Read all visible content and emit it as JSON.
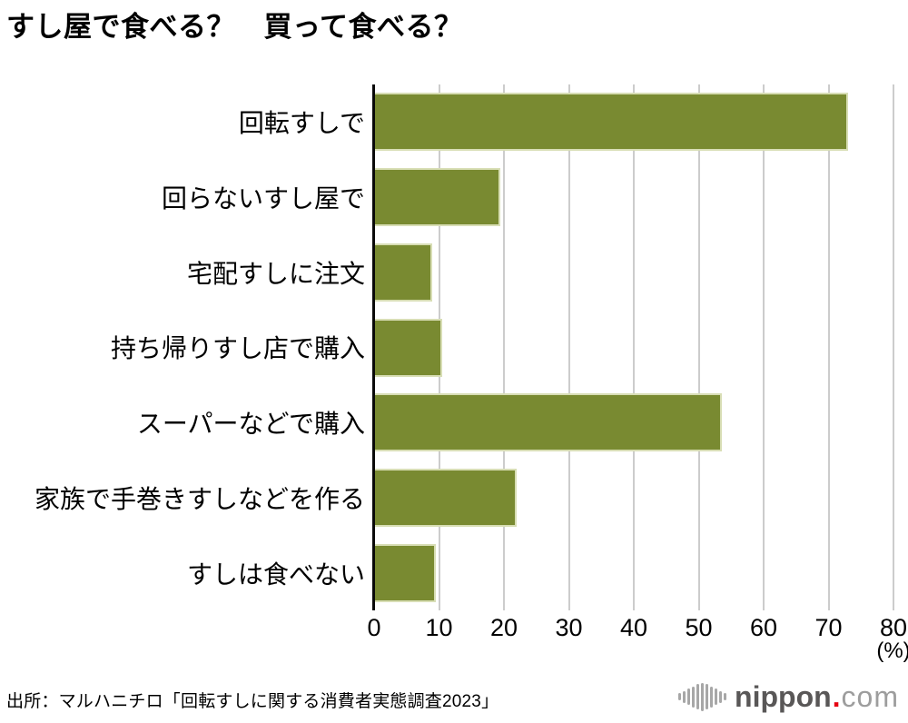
{
  "title": "すし屋で食べる？　買って食べる？",
  "source": "出所：マルハニチロ「回転すしに関する消費者実態調査2023」",
  "logo": {
    "name": "nippon",
    "dot": ".",
    "tld": "com"
  },
  "colors": {
    "bar": "#798a31",
    "bar_border": "#d8deb5",
    "gridline": "#cccccc",
    "axis": "#0a0a0a",
    "text": "#000000",
    "logo_dark": "#595757",
    "logo_light": "#9d9d9d",
    "logo_dot": "#e60012",
    "logo_mark": "#a7a7a7"
  },
  "chart_data": {
    "type": "bar",
    "orientation": "horizontal",
    "title": "すし屋で食べる？　買って食べる？",
    "categories": [
      "回転すしで",
      "回らないすし屋で",
      "宅配すしに注文",
      "持ち帰りすし店で購入",
      "スーパーなどで購入",
      "家族で手巻きすしなどを作る",
      "すしは食べない"
    ],
    "values": [
      73,
      19.5,
      9,
      10.5,
      53.5,
      22,
      9.5
    ],
    "xlabel": "(%)",
    "ylabel": "",
    "xlim": [
      0,
      80
    ],
    "xticks": [
      0,
      10,
      20,
      30,
      40,
      50,
      60,
      70,
      80
    ],
    "grid": true,
    "legend": false
  },
  "logo_mark_bar_heights": [
    8,
    13,
    18,
    23,
    28,
    31,
    28,
    23,
    18,
    13,
    8
  ]
}
